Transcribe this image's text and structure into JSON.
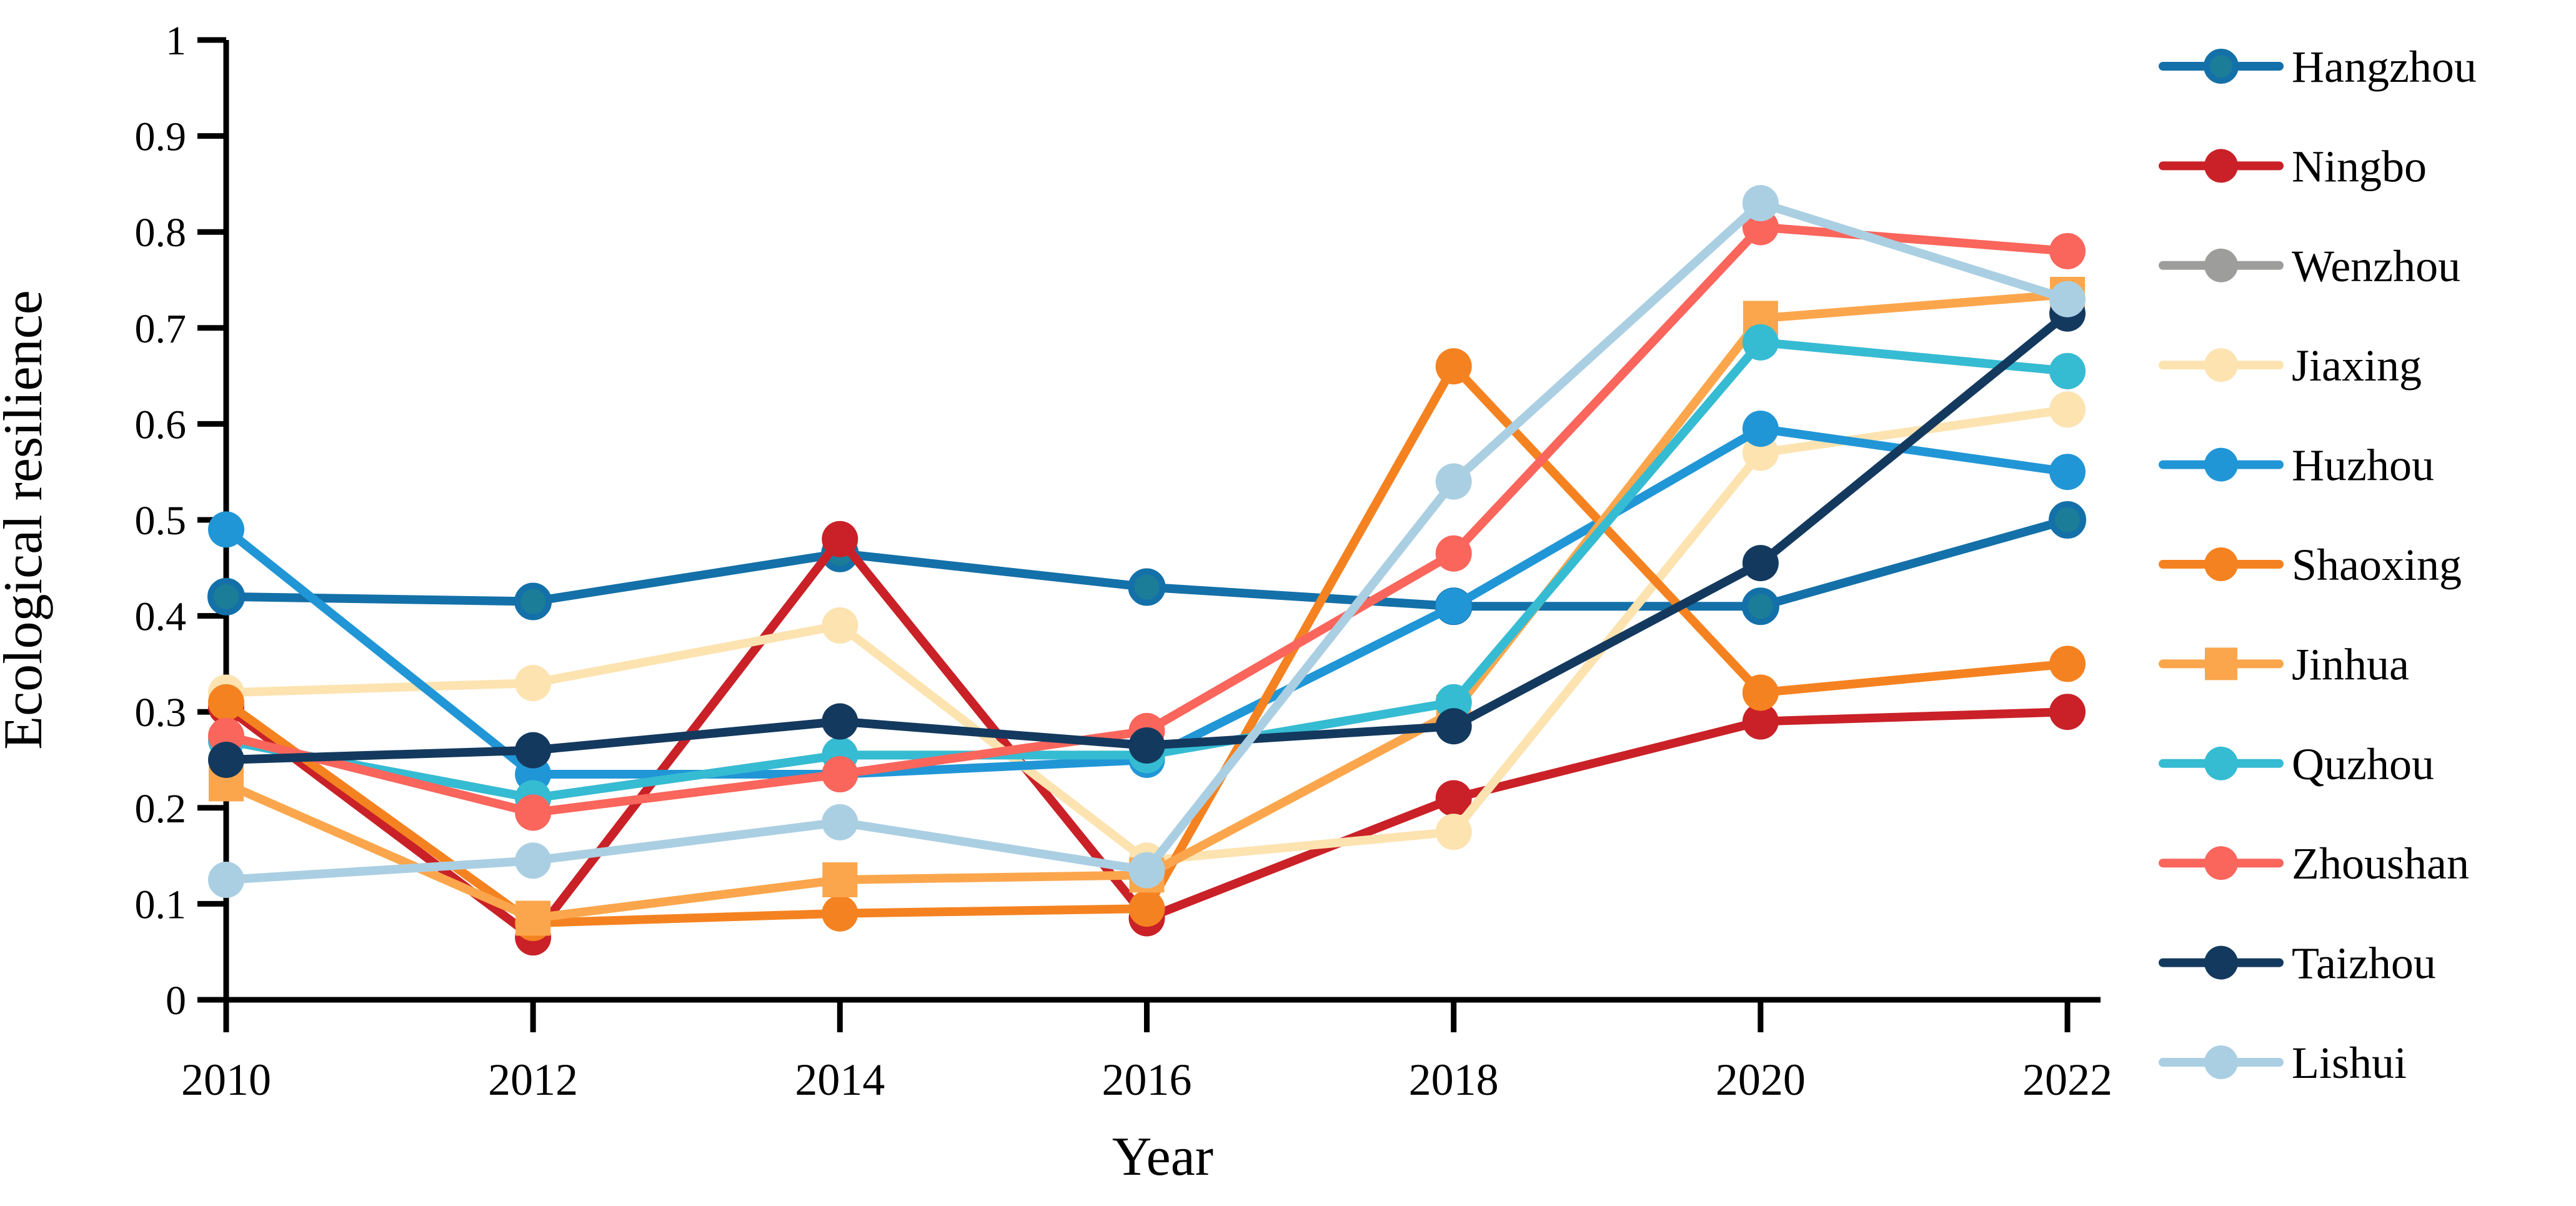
{
  "figure": {
    "background": "#ffffff",
    "axis_color": "#000000"
  },
  "chart_data": {
    "type": "line",
    "title": "",
    "xlabel": "Year",
    "ylabel": "Ecological resilience",
    "x": [
      2010,
      2012,
      2014,
      2016,
      2018,
      2020,
      2022
    ],
    "ylim": [
      0,
      1
    ],
    "ytick_labels": [
      "0",
      "0.1",
      "0.2",
      "0.3",
      "0.4",
      "0.5",
      "0.6",
      "0.7",
      "0.8",
      "0.9",
      "1"
    ],
    "grid": false,
    "legend_position": "right",
    "series": [
      {
        "name": "Hangzhou",
        "color": "#1470a8",
        "marker": "circle",
        "marker_fill": "#1c7d99",
        "values": [
          0.42,
          0.415,
          0.465,
          0.43,
          0.41,
          0.41,
          0.5
        ]
      },
      {
        "name": "Ningbo",
        "color": "#c92127",
        "marker": "circle",
        "values": [
          0.305,
          0.065,
          0.48,
          0.085,
          0.21,
          0.29,
          0.3
        ]
      },
      {
        "name": "Wenzhou",
        "color": "#9d9d9c",
        "marker": "circle",
        "values": [
          0.27,
          0.21,
          0.255,
          0.255,
          0.31,
          0.685,
          0.655
        ]
      },
      {
        "name": "Jiaxing",
        "color": "#fce3b0",
        "marker": "circle",
        "values": [
          0.32,
          0.33,
          0.39,
          0.145,
          0.175,
          0.57,
          0.615
        ]
      },
      {
        "name": "Huzhou",
        "color": "#2196d6",
        "marker": "circle",
        "values": [
          0.49,
          0.235,
          0.235,
          0.25,
          0.41,
          0.595,
          0.55
        ]
      },
      {
        "name": "Shaoxing",
        "color": "#f58220",
        "marker": "circle",
        "values": [
          0.31,
          0.08,
          0.09,
          0.095,
          0.66,
          0.32,
          0.35
        ]
      },
      {
        "name": "Jinhua",
        "color": "#fba64c",
        "marker": "square",
        "values": [
          0.225,
          0.085,
          0.125,
          0.13,
          0.3,
          0.71,
          0.735
        ]
      },
      {
        "name": "Quzhou",
        "color": "#35bcd3",
        "marker": "circle",
        "values": [
          0.27,
          0.21,
          0.255,
          0.255,
          0.31,
          0.685,
          0.655
        ]
      },
      {
        "name": "Zhoushan",
        "color": "#fa655c",
        "marker": "circle",
        "values": [
          0.275,
          0.195,
          0.235,
          0.28,
          0.465,
          0.805,
          0.78
        ]
      },
      {
        "name": "Taizhou",
        "color": "#14395e",
        "marker": "circle",
        "values": [
          0.25,
          0.26,
          0.29,
          0.265,
          0.285,
          0.455,
          0.715
        ]
      },
      {
        "name": "Lishui",
        "color": "#abcfe2",
        "marker": "circle",
        "values": [
          0.125,
          0.145,
          0.185,
          0.135,
          0.54,
          0.83,
          0.73
        ]
      }
    ]
  }
}
